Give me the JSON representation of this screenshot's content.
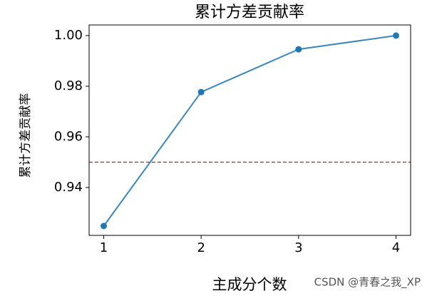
{
  "chart_data": {
    "type": "line",
    "title": "累计方差贡献率",
    "xlabel": "主成分个数",
    "ylabel": "累计方差贡献率",
    "x": [
      1,
      2,
      3,
      4
    ],
    "values": [
      0.9248,
      0.9777,
      0.9946,
      1.0
    ],
    "color": "#3a87c0",
    "xlim": [
      0.85,
      4.15
    ],
    "xticks": [
      1,
      2,
      3,
      4
    ],
    "ylim": [
      0.9211,
      1.0042
    ],
    "yticks": [
      0.94,
      0.96,
      0.98,
      {
        "value": 1,
        "label": "1.00"
      }
    ],
    "hline": 0.95,
    "hline_color": "#e31a1c",
    "watermark": "CSDN @青春之我_XP"
  }
}
